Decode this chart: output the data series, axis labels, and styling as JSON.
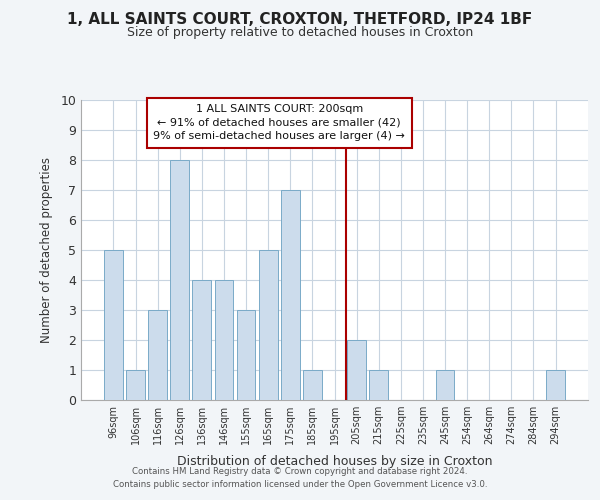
{
  "title": "1, ALL SAINTS COURT, CROXTON, THETFORD, IP24 1BF",
  "subtitle": "Size of property relative to detached houses in Croxton",
  "xlabel": "Distribution of detached houses by size in Croxton",
  "ylabel": "Number of detached properties",
  "bar_labels": [
    "96sqm",
    "106sqm",
    "116sqm",
    "126sqm",
    "136sqm",
    "146sqm",
    "155sqm",
    "165sqm",
    "175sqm",
    "185sqm",
    "195sqm",
    "205sqm",
    "215sqm",
    "225sqm",
    "235sqm",
    "245sqm",
    "254sqm",
    "264sqm",
    "274sqm",
    "284sqm",
    "294sqm"
  ],
  "bar_values": [
    5,
    1,
    3,
    8,
    4,
    4,
    3,
    5,
    7,
    1,
    0,
    2,
    1,
    0,
    0,
    1,
    0,
    0,
    0,
    0,
    1
  ],
  "bar_color": "#ccdcec",
  "bar_edge_color": "#7aaac8",
  "grid_color": "#c8d4e0",
  "background_color": "#f2f5f8",
  "plot_bg_color": "#ffffff",
  "property_line_color": "#aa0000",
  "annotation_title": "1 ALL SAINTS COURT: 200sqm",
  "annotation_line1": "← 91% of detached houses are smaller (42)",
  "annotation_line2": "9% of semi-detached houses are larger (4) →",
  "annotation_box_color": "#ffffff",
  "annotation_box_edge": "#aa0000",
  "ylim": [
    0,
    10
  ],
  "yticks": [
    0,
    1,
    2,
    3,
    4,
    5,
    6,
    7,
    8,
    9,
    10
  ],
  "footer_line1": "Contains HM Land Registry data © Crown copyright and database right 2024.",
  "footer_line2": "Contains public sector information licensed under the Open Government Licence v3.0."
}
